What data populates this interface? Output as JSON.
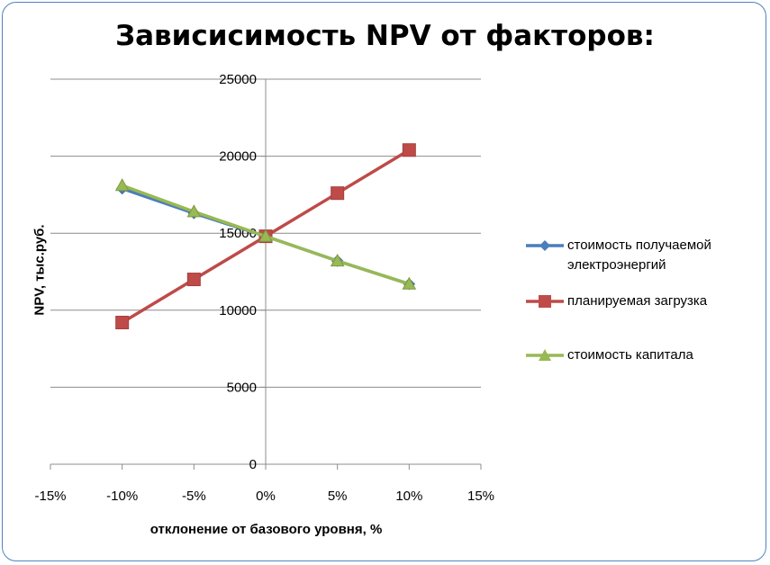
{
  "chart_data": {
    "type": "line",
    "title": "Зависисимость NPV от факторов:",
    "xlabel": "отклонение от базового уровня, %",
    "ylabel": "NPV, тыс.руб.",
    "xlim": [
      -0.15,
      0.15
    ],
    "ylim": [
      0,
      25000
    ],
    "x_ticks": [
      -0.15,
      -0.1,
      -0.05,
      0,
      0.05,
      0.1,
      0.15
    ],
    "x_tick_labels": [
      "-15%",
      "-10%",
      "-5%",
      "0%",
      "5%",
      "10%",
      "15%"
    ],
    "y_ticks": [
      0,
      5000,
      10000,
      15000,
      20000,
      25000
    ],
    "y_tick_labels": [
      "0",
      "5000",
      "10000",
      "15000",
      "20000",
      "25000"
    ],
    "grid": "horizontal",
    "legend_position": "right",
    "series": [
      {
        "name": "стоимость получаемой электроэнергий",
        "name_lines": [
          "стоимость получаемой",
          "электроэнергий"
        ],
        "marker": "diamond",
        "color": "#4a7ebb",
        "x": [
          -0.1,
          -0.05,
          0,
          0.05,
          0.1
        ],
        "y": [
          17900,
          16300,
          14800,
          13200,
          11700
        ]
      },
      {
        "name": "планируемая загрузка",
        "name_lines": [
          "планируемая загрузка"
        ],
        "marker": "square",
        "color": "#be4b48",
        "x": [
          -0.1,
          -0.05,
          0,
          0.05,
          0.1
        ],
        "y": [
          9200,
          12000,
          14800,
          17600,
          20400
        ]
      },
      {
        "name": "стоимость капитала",
        "name_lines": [
          "стоимость капитала"
        ],
        "marker": "triangle",
        "color": "#98b954",
        "x": [
          -0.1,
          -0.05,
          0,
          0.05,
          0.1
        ],
        "y": [
          18100,
          16400,
          14800,
          13200,
          11700
        ]
      }
    ]
  }
}
